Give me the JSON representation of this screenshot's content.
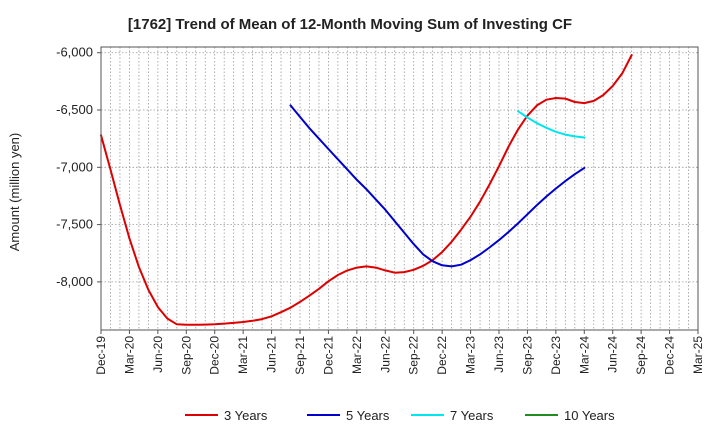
{
  "chart_data": {
    "type": "line",
    "title": "[1762]  Trend of Mean of 12-Month Moving Sum of Investing CF",
    "ylabel": "Amount (million yen)",
    "xlabel": "",
    "x_ticks": [
      "Dec-19",
      "Mar-20",
      "Jun-20",
      "Sep-20",
      "Dec-20",
      "Mar-21",
      "Jun-21",
      "Sep-21",
      "Dec-21",
      "Mar-22",
      "Jun-22",
      "Sep-22",
      "Dec-22",
      "Mar-23",
      "Jun-23",
      "Sep-23",
      "Dec-23",
      "Mar-24",
      "Jun-24",
      "Sep-24",
      "Dec-24",
      "Mar-25"
    ],
    "y_ticks": [
      -6000,
      -6500,
      -7000,
      -7500,
      -8000
    ],
    "y_tick_labels": [
      "-6,000",
      "-6,500",
      "-7,000",
      "-7,500",
      "-8,000"
    ],
    "ylim": [
      -8420,
      -5950
    ],
    "grid": true,
    "legend_position": "bottom",
    "series": [
      {
        "name": "3 Years",
        "color": "#dd0000",
        "start": "Dec-19",
        "values": [
          -6720,
          -7020,
          -7330,
          -7620,
          -7870,
          -8070,
          -8220,
          -8320,
          -8370,
          -8375,
          -8375,
          -8373,
          -8370,
          -8364,
          -8358,
          -8350,
          -8340,
          -8325,
          -8300,
          -8265,
          -8225,
          -8175,
          -8120,
          -8060,
          -7995,
          -7940,
          -7900,
          -7875,
          -7865,
          -7875,
          -7900,
          -7920,
          -7915,
          -7895,
          -7860,
          -7810,
          -7740,
          -7650,
          -7545,
          -7430,
          -7300,
          -7150,
          -6990,
          -6820,
          -6670,
          -6550,
          -6460,
          -6410,
          -6395,
          -6400,
          -6430,
          -6440,
          -6420,
          -6370,
          -6290,
          -6180,
          -6020
        ]
      },
      {
        "name": "5 Years",
        "color": "#0000cc",
        "start": "Aug-21",
        "values": [
          -6460,
          -6560,
          -6660,
          -6750,
          -6840,
          -6930,
          -7020,
          -7110,
          -7190,
          -7280,
          -7370,
          -7470,
          -7570,
          -7670,
          -7760,
          -7820,
          -7855,
          -7865,
          -7850,
          -7810,
          -7760,
          -7700,
          -7635,
          -7565,
          -7490,
          -7410,
          -7330,
          -7255,
          -7185,
          -7120,
          -7060,
          -7005
        ]
      },
      {
        "name": "7 Years",
        "color": "#00e5ee",
        "start": "Aug-23",
        "values": [
          -6510,
          -6565,
          -6615,
          -6655,
          -6690,
          -6715,
          -6730,
          -6740
        ]
      },
      {
        "name": "10 Years",
        "color": "#228b22",
        "start": "Aug-23",
        "values": []
      }
    ]
  }
}
